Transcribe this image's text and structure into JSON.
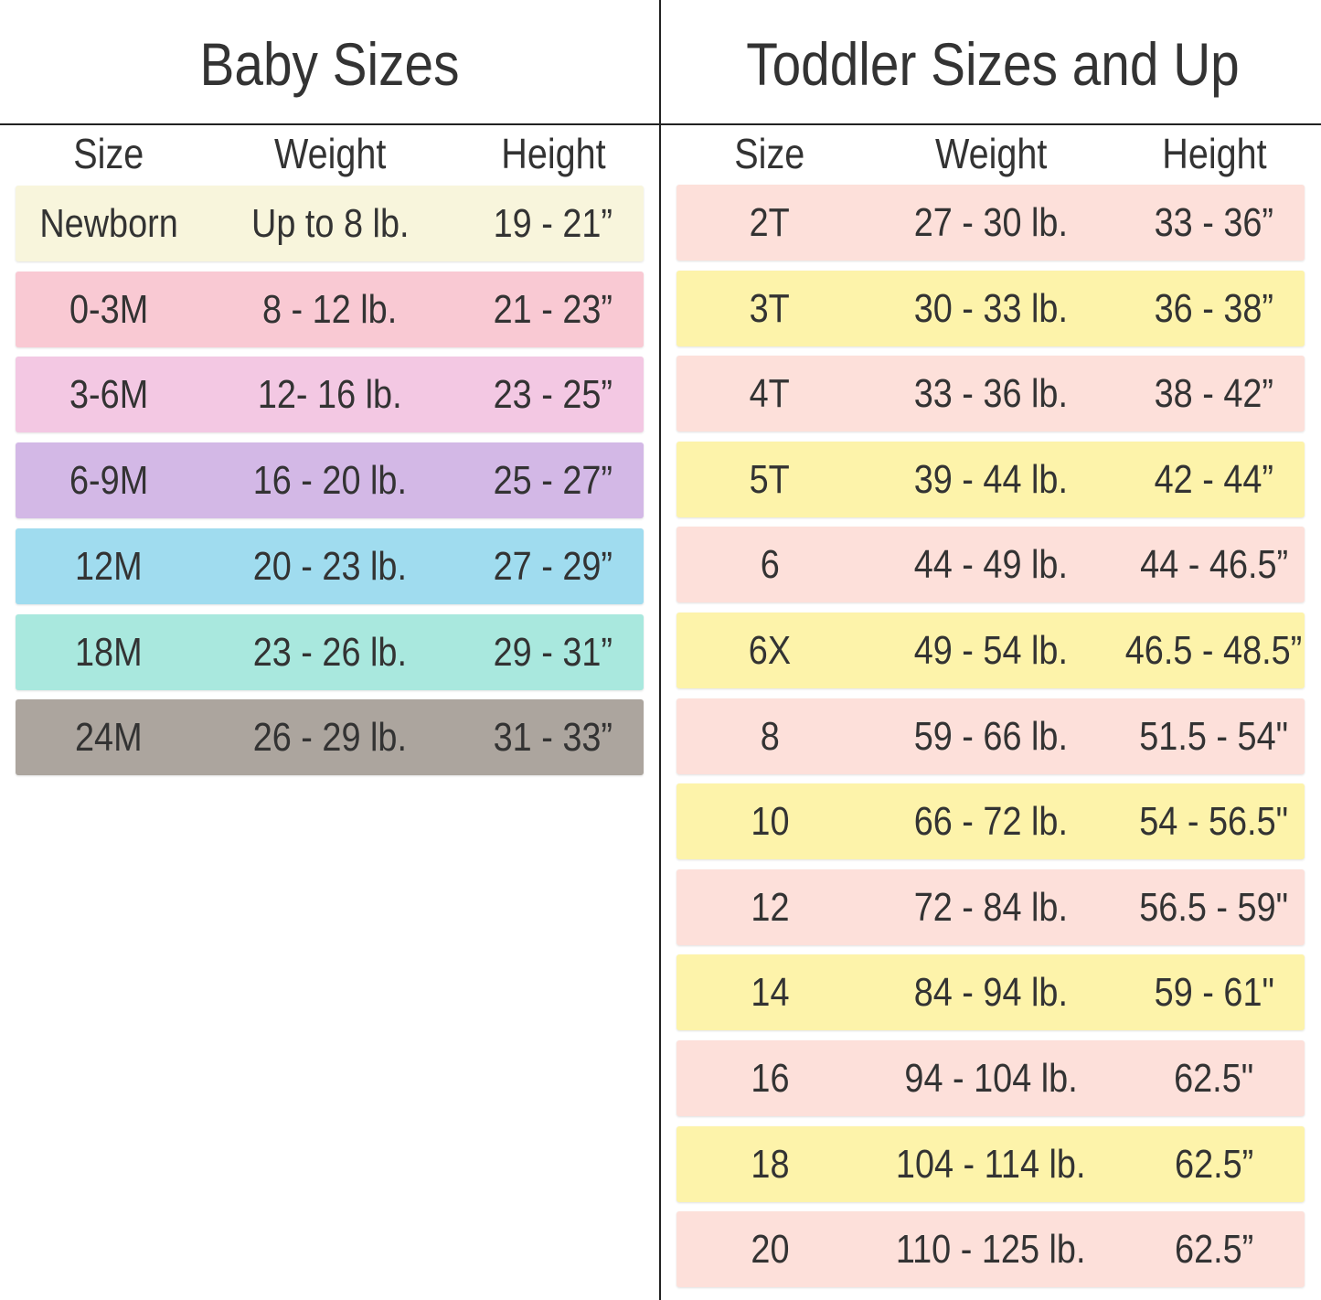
{
  "baby": {
    "title": "Baby Sizes",
    "headers": {
      "size": "Size",
      "weight": "Weight",
      "height": "Height"
    },
    "rows": [
      {
        "size": "Newborn",
        "weight": "Up to 8 lb.",
        "height": "19 - 21”",
        "color": "#f8f5dc"
      },
      {
        "size": "0-3M",
        "weight": "8 - 12 lb.",
        "height": "21 - 23”",
        "color": "#f9c9d3"
      },
      {
        "size": "3-6M",
        "weight": "12- 16 lb.",
        "height": "23 - 25”",
        "color": "#f3c8e3"
      },
      {
        "size": "6-9M",
        "weight": "16 - 20 lb.",
        "height": "25 - 27”",
        "color": "#d3b8e6"
      },
      {
        "size": "12M",
        "weight": "20 - 23 lb.",
        "height": "27 - 29”",
        "color": "#a0dcef"
      },
      {
        "size": "18M",
        "weight": "23 - 26 lb.",
        "height": "29 - 31”",
        "color": "#a9e8de"
      },
      {
        "size": "24M",
        "weight": "26 - 29 lb.",
        "height": "31 - 33”",
        "color": "#aca59e"
      }
    ]
  },
  "toddler": {
    "title": "Toddler Sizes and Up",
    "headers": {
      "size": "Size",
      "weight": "Weight",
      "height": "Height"
    },
    "rows": [
      {
        "size": "2T",
        "weight": "27 - 30 lb.",
        "height": "33 - 36”",
        "color": "#fde0da"
      },
      {
        "size": "3T",
        "weight": "30 - 33 lb.",
        "height": "36 - 38”",
        "color": "#fdf3aa"
      },
      {
        "size": "4T",
        "weight": "33 - 36 lb.",
        "height": "38 - 42”",
        "color": "#fde0da"
      },
      {
        "size": "5T",
        "weight": "39 - 44 lb.",
        "height": "42 - 44”",
        "color": "#fdf3aa"
      },
      {
        "size": "6",
        "weight": "44 - 49 lb.",
        "height": "44 - 46.5”",
        "color": "#fde0da"
      },
      {
        "size": "6X",
        "weight": "49 - 54 lb.",
        "height": "46.5 - 48.5”",
        "color": "#fdf3aa"
      },
      {
        "size": "8",
        "weight": "59 - 66 lb.",
        "height": "51.5 - 54\"",
        "color": "#fde0da"
      },
      {
        "size": "10",
        "weight": "66 - 72 lb.",
        "height": "54 - 56.5\"",
        "color": "#fdf3aa"
      },
      {
        "size": "12",
        "weight": "72 - 84 lb.",
        "height": "56.5 - 59\"",
        "color": "#fde0da"
      },
      {
        "size": "14",
        "weight": "84 - 94 lb.",
        "height": "59 - 61\"",
        "color": "#fdf3aa"
      },
      {
        "size": "16",
        "weight": "94 - 104 lb.",
        "height": "62.5\"",
        "color": "#fde0da"
      },
      {
        "size": "18",
        "weight": "104 - 114 lb.",
        "height": "62.5”",
        "color": "#fdf3aa"
      },
      {
        "size": "20",
        "weight": "110 - 125 lb.",
        "height": "62.5”",
        "color": "#fde0da"
      }
    ]
  }
}
